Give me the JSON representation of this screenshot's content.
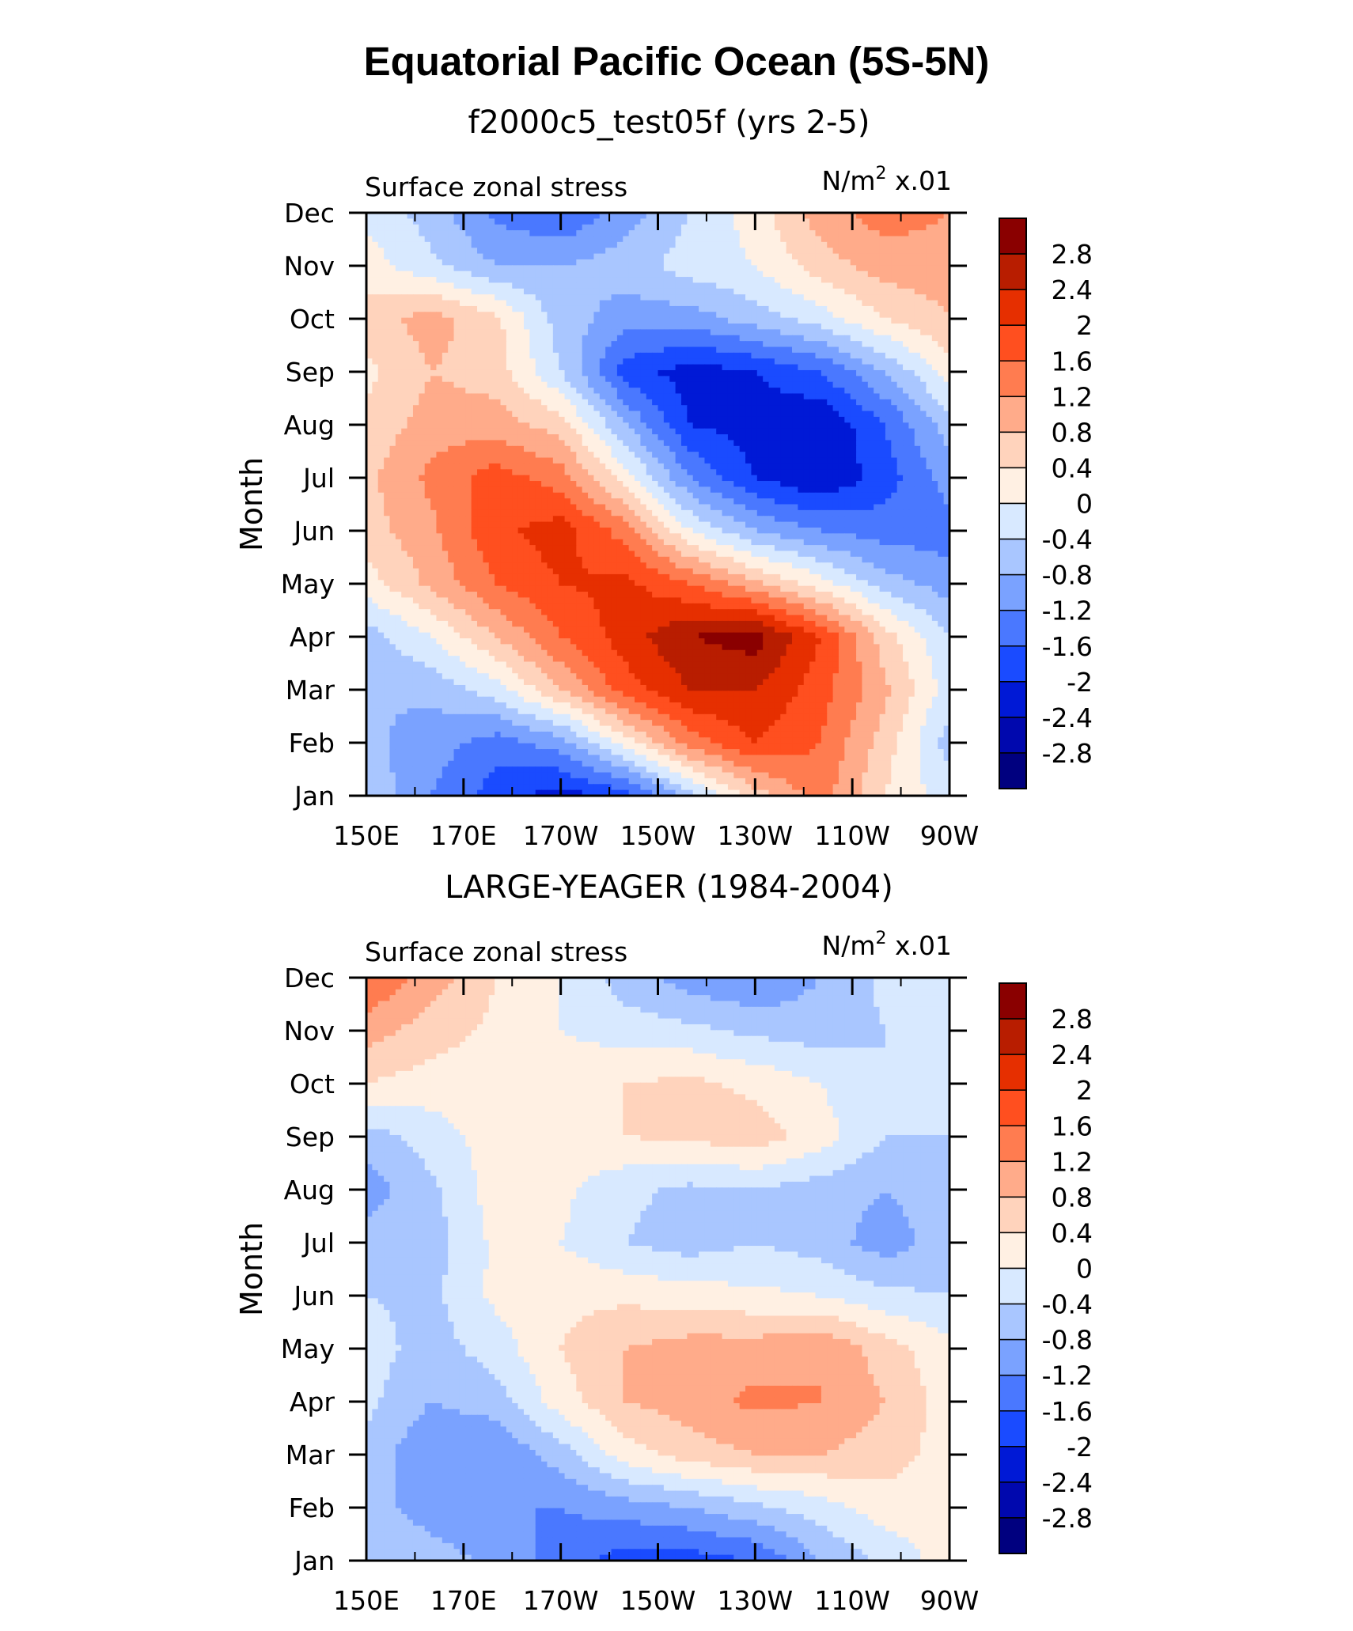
{
  "figure_title": "Equatorial Pacific Ocean (5S-5N)",
  "colors": [
    "#00007f",
    "#0008ae",
    "#0019d6",
    "#1a4bff",
    "#4a78ff",
    "#7aa2ff",
    "#a9c6ff",
    "#d8e9ff",
    "#fff0e3",
    "#ffd3bc",
    "#ffab8a",
    "#ff7c50",
    "#ff4f1f",
    "#e62f00",
    "#b81d00",
    "#8a0000"
  ],
  "chart_data": [
    {
      "type": "heatmap",
      "title": "f2000c5_test05f (yrs 2-5)",
      "left_label": "Surface zonal stress",
      "right_label_prefix": "N/m",
      "right_label_sup": "2",
      "right_label_suffix": " x.01",
      "ylabel": "Month",
      "x": [
        "150E",
        "170E",
        "170W",
        "150W",
        "130W",
        "110W",
        "90W"
      ],
      "y": [
        "Jan",
        "Feb",
        "Mar",
        "Apr",
        "May",
        "Jun",
        "Jul",
        "Aug",
        "Sep",
        "Oct",
        "Nov",
        "Dec"
      ],
      "levels": [
        "2.8",
        "2.4",
        "2",
        "1.6",
        "1.2",
        "0.8",
        "0.4",
        "0",
        "-0.4",
        "-0.8",
        "-1.2",
        "-1.6",
        "-2",
        "-2.4",
        "-2.8"
      ],
      "z": [
        [
          -0.5,
          -1.2,
          -1.8,
          -2.2,
          -1.8,
          -0.6,
          0.6,
          1.4,
          0.4,
          -0.2
        ],
        [
          -0.7,
          -1.0,
          -1.4,
          -1.0,
          0.2,
          1.4,
          2.0,
          1.6,
          0.6,
          -0.6
        ],
        [
          -0.8,
          -0.7,
          -0.2,
          0.8,
          1.8,
          2.4,
          2.4,
          1.8,
          0.9,
          -0.2
        ],
        [
          -0.6,
          0.0,
          0.8,
          1.6,
          2.2,
          2.8,
          3.0,
          2.0,
          0.6,
          -0.4
        ],
        [
          0.2,
          0.9,
          1.6,
          2.0,
          2.1,
          1.6,
          0.9,
          0.2,
          -0.6,
          -1.0
        ],
        [
          0.6,
          1.1,
          1.9,
          2.2,
          1.4,
          0.0,
          -0.8,
          -1.2,
          -1.4,
          -1.4
        ],
        [
          0.7,
          1.3,
          1.8,
          1.4,
          0.2,
          -1.2,
          -2.0,
          -2.4,
          -1.8,
          -1.0
        ],
        [
          0.5,
          1.0,
          1.0,
          0.6,
          -0.8,
          -2.0,
          -2.2,
          -2.4,
          -1.6,
          -0.6
        ],
        [
          0.3,
          0.8,
          0.6,
          -0.4,
          -1.8,
          -2.2,
          -2.0,
          -1.6,
          -0.8,
          0.2
        ],
        [
          0.6,
          1.0,
          0.5,
          -0.6,
          -1.0,
          -1.0,
          -0.6,
          -0.2,
          0.4,
          0.8
        ],
        [
          0.2,
          -0.3,
          -0.8,
          -0.8,
          -0.6,
          -0.2,
          0.0,
          0.6,
          1.0,
          1.0
        ],
        [
          -0.1,
          -0.6,
          -1.3,
          -1.6,
          -1.0,
          -0.4,
          0.2,
          1.0,
          1.4,
          1.2
        ]
      ]
    },
    {
      "type": "heatmap",
      "title": "LARGE-YEAGER (1984-2004)",
      "left_label": "Surface zonal stress",
      "right_label_prefix": "N/m",
      "right_label_sup": "2",
      "right_label_suffix": " x.01",
      "ylabel": "Month",
      "x": [
        "150E",
        "170E",
        "170W",
        "150W",
        "130W",
        "110W",
        "90W"
      ],
      "y": [
        "Jan",
        "Feb",
        "Mar",
        "Apr",
        "May",
        "Jun",
        "Jul",
        "Aug",
        "Sep",
        "Oct",
        "Nov",
        "Dec"
      ],
      "levels": [
        "2.8",
        "2.4",
        "2",
        "1.6",
        "1.2",
        "0.8",
        "0.4",
        "0",
        "-0.4",
        "-0.8",
        "-1.2",
        "-1.6",
        "-2",
        "-2.4",
        "-2.8"
      ],
      "z": [
        [
          -0.4,
          -0.6,
          -0.9,
          -1.4,
          -1.8,
          -1.8,
          -1.6,
          -0.8,
          -0.3,
          0.2
        ],
        [
          -0.6,
          -1.0,
          -1.2,
          -1.2,
          -1.0,
          -0.8,
          -0.5,
          -0.2,
          0.2,
          0.2
        ],
        [
          -0.5,
          -1.2,
          -1.2,
          -0.6,
          0.2,
          0.6,
          0.8,
          0.8,
          0.6,
          0.2
        ],
        [
          -0.3,
          -0.8,
          -0.6,
          0.2,
          0.8,
          1.0,
          1.3,
          1.2,
          0.8,
          0.2
        ],
        [
          -0.2,
          -0.6,
          -0.2,
          0.4,
          0.8,
          1.0,
          1.0,
          1.2,
          0.6,
          0.1
        ],
        [
          -0.4,
          -0.5,
          0.1,
          0.3,
          0.3,
          0.2,
          0.1,
          0.0,
          -0.3,
          -0.4
        ],
        [
          -0.6,
          -0.6,
          0.1,
          0.0,
          -0.4,
          -0.6,
          -0.4,
          -0.6,
          -1.0,
          -0.6
        ],
        [
          -1.0,
          -0.5,
          0.2,
          0.1,
          -0.3,
          -0.5,
          -0.4,
          -0.6,
          -0.8,
          -0.6
        ],
        [
          -0.6,
          -0.2,
          0.2,
          0.2,
          0.4,
          0.5,
          0.6,
          0.2,
          -0.4,
          -0.4
        ],
        [
          0.4,
          0.2,
          0.2,
          0.2,
          0.4,
          0.5,
          0.3,
          0.0,
          -0.4,
          -0.2
        ],
        [
          1.0,
          0.6,
          0.3,
          0.0,
          -0.2,
          -0.3,
          -0.5,
          -0.6,
          -0.4,
          -0.2
        ],
        [
          1.6,
          1.0,
          0.4,
          0.0,
          -0.6,
          -1.0,
          -1.2,
          -0.8,
          -0.3,
          0.0
        ]
      ]
    }
  ]
}
